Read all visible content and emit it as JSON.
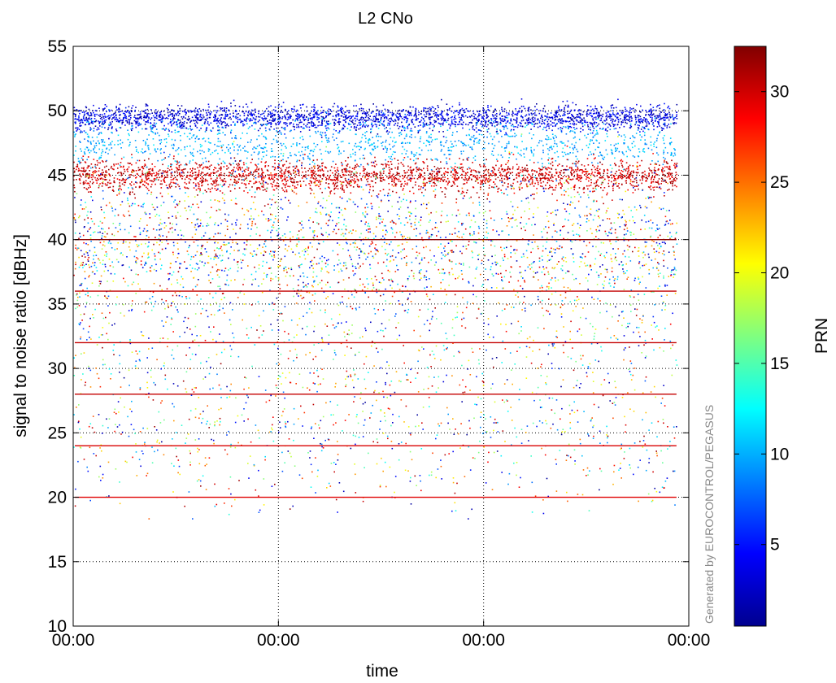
{
  "chart_data": {
    "type": "scatter",
    "title": "L2 CNo",
    "xlabel": "time",
    "ylabel": "signal to noise ratio [dBHz]",
    "x_ticks": [
      "00:00",
      "00:00",
      "00:00",
      "00:00"
    ],
    "y_ticks": [
      10,
      15,
      20,
      25,
      30,
      35,
      40,
      45,
      50,
      55
    ],
    "ylim": [
      10,
      55
    ],
    "grid": true,
    "colorbar": {
      "label": "PRN",
      "ticks": [
        5,
        10,
        15,
        20,
        25,
        30
      ],
      "range": [
        0.5,
        32.5
      ],
      "colormap": "jet"
    },
    "constant_lines": [
      {
        "y": 40,
        "color": "#8b0000"
      },
      {
        "y": 36,
        "color": "#c40000"
      },
      {
        "y": 32,
        "color": "#c40000"
      },
      {
        "y": 28,
        "color": "#c40000"
      },
      {
        "y": 24,
        "color": "#d80000"
      },
      {
        "y": 20,
        "color": "#e00000"
      }
    ],
    "bands": [
      {
        "prn_range": [
          1,
          6
        ],
        "snr_center": 49.5,
        "snr_spread": 0.8,
        "density": "high"
      },
      {
        "prn_range": [
          8,
          12
        ],
        "snr_center": 47.5,
        "snr_spread": 1.5,
        "density": "medium"
      },
      {
        "prn_range": [
          28,
          32
        ],
        "snr_center": 45,
        "snr_spread": 1.0,
        "density": "high"
      },
      {
        "prn_range": [
          1,
          32
        ],
        "snr_center": 40,
        "snr_spread": 4.5,
        "density": "high"
      },
      {
        "prn_range": [
          1,
          32
        ],
        "snr_center": 32,
        "snr_spread": 8,
        "density": "low"
      }
    ]
  },
  "credit": "Generated by EUROCONTROL/PEGASUS",
  "colors": {
    "axis": "#000000",
    "grid": "#000000",
    "credit": "#8a8a8a"
  }
}
